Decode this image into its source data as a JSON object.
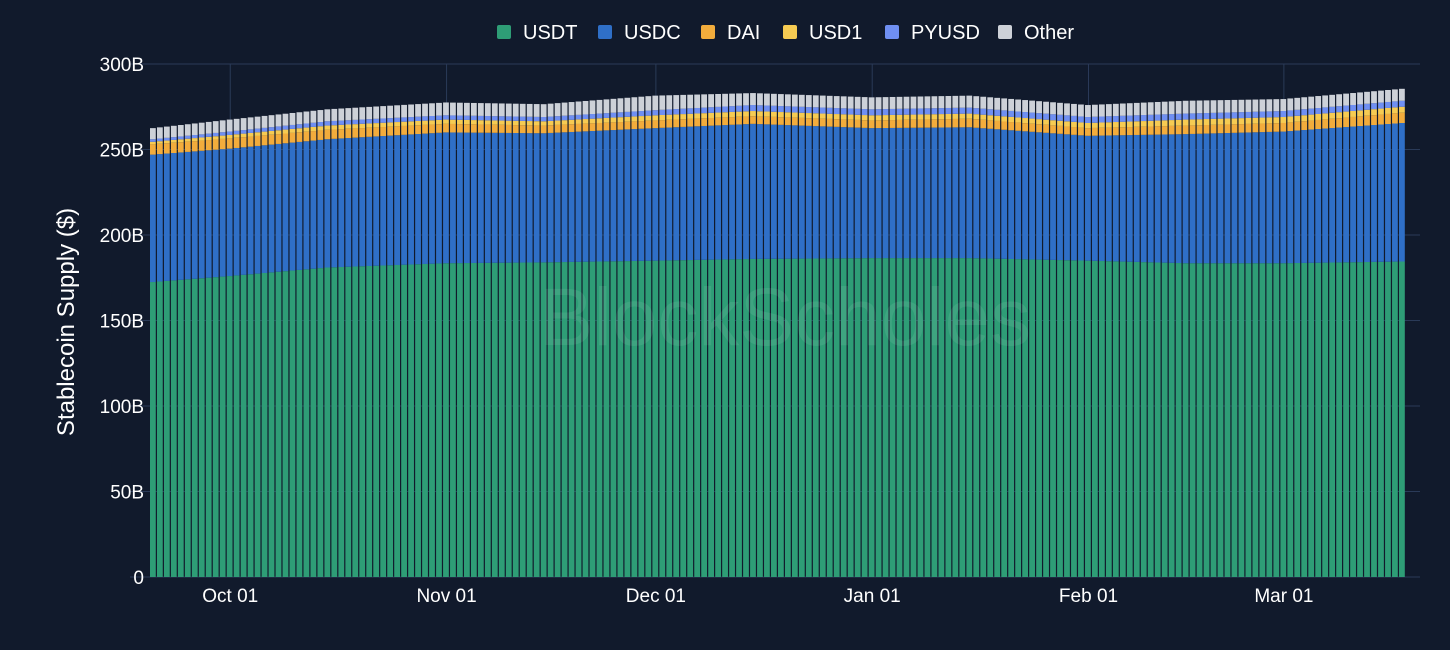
{
  "chart_data": {
    "type": "bar",
    "stacked": true,
    "ylabel": "Stablecoin Supply ($)",
    "xlabel": "",
    "ylim": [
      0,
      300
    ],
    "yunit": "B",
    "y_ticks": [
      0,
      50,
      100,
      150,
      200,
      250,
      300
    ],
    "y_tick_labels": [
      "0",
      "50B",
      "100B",
      "150B",
      "200B",
      "250B",
      "300B"
    ],
    "x_range": [
      "2025-09-20",
      "2026-03-18"
    ],
    "x_ticks": [
      "2025-10-01",
      "2025-11-01",
      "2025-12-01",
      "2026-01-01",
      "2026-02-01",
      "2026-03-01"
    ],
    "x_tick_labels": [
      "Oct 01",
      "Nov 01",
      "Dec 01",
      "Jan 01",
      "Feb 01",
      "Mar 01"
    ],
    "grid": true,
    "legend_position": "top-center",
    "watermark": "BlockScholes",
    "series_order": [
      "USDT",
      "USDC",
      "DAI",
      "USD1",
      "PYUSD",
      "Other"
    ],
    "series": [
      {
        "name": "USDT",
        "color": "#2e9d76"
      },
      {
        "name": "USDC",
        "color": "#2f6fc7"
      },
      {
        "name": "DAI",
        "color": "#f2ac3c"
      },
      {
        "name": "USD1",
        "color": "#f6cb52"
      },
      {
        "name": "PYUSD",
        "color": "#6f8ff2"
      },
      {
        "name": "Other",
        "color": "#cdd1d8"
      }
    ],
    "keypoints": [
      {
        "date": "2025-09-20",
        "USDT": 172.5,
        "USDC": 74.5,
        "DAI": 6.0,
        "USD1": 1.5,
        "PYUSD": 1.5,
        "Other": 6.5
      },
      {
        "date": "2025-10-01",
        "USDT": 176.0,
        "USDC": 74.5,
        "DAI": 6.0,
        "USD1": 2.0,
        "PYUSD": 2.0,
        "Other": 7.0
      },
      {
        "date": "2025-10-15",
        "USDT": 181.0,
        "USDC": 75.0,
        "DAI": 5.5,
        "USD1": 2.5,
        "PYUSD": 2.5,
        "Other": 7.0
      },
      {
        "date": "2025-11-01",
        "USDT": 183.5,
        "USDC": 76.5,
        "DAI": 5.0,
        "USD1": 2.5,
        "PYUSD": 2.5,
        "Other": 7.5
      },
      {
        "date": "2025-11-15",
        "USDT": 184.0,
        "USDC": 75.5,
        "DAI": 4.5,
        "USD1": 2.5,
        "PYUSD": 2.5,
        "Other": 7.5
      },
      {
        "date": "2025-12-01",
        "USDT": 185.0,
        "USDC": 77.5,
        "DAI": 4.5,
        "USD1": 3.0,
        "PYUSD": 3.0,
        "Other": 8.5
      },
      {
        "date": "2025-12-15",
        "USDT": 186.0,
        "USDC": 79.0,
        "DAI": 4.5,
        "USD1": 3.0,
        "PYUSD": 3.5,
        "Other": 7.0
      },
      {
        "date": "2026-01-01",
        "USDT": 186.5,
        "USDC": 76.0,
        "DAI": 4.5,
        "USD1": 3.0,
        "PYUSD": 3.5,
        "Other": 7.0
      },
      {
        "date": "2026-01-15",
        "USDT": 186.5,
        "USDC": 76.5,
        "DAI": 5.0,
        "USD1": 3.0,
        "PYUSD": 3.5,
        "Other": 7.0
      },
      {
        "date": "2026-02-01",
        "USDT": 185.0,
        "USDC": 73.0,
        "DAI": 4.5,
        "USD1": 3.0,
        "PYUSD": 3.5,
        "Other": 7.0
      },
      {
        "date": "2026-02-15",
        "USDT": 183.5,
        "USDC": 75.5,
        "DAI": 5.0,
        "USD1": 3.5,
        "PYUSD": 3.5,
        "Other": 7.5
      },
      {
        "date": "2026-03-01",
        "USDT": 183.5,
        "USDC": 77.0,
        "DAI": 5.0,
        "USD1": 3.5,
        "PYUSD": 3.5,
        "Other": 7.0
      },
      {
        "date": "2026-03-18",
        "USDT": 184.5,
        "USDC": 81.0,
        "DAI": 6.0,
        "USD1": 3.5,
        "PYUSD": 3.5,
        "Other": 7.0
      }
    ]
  }
}
